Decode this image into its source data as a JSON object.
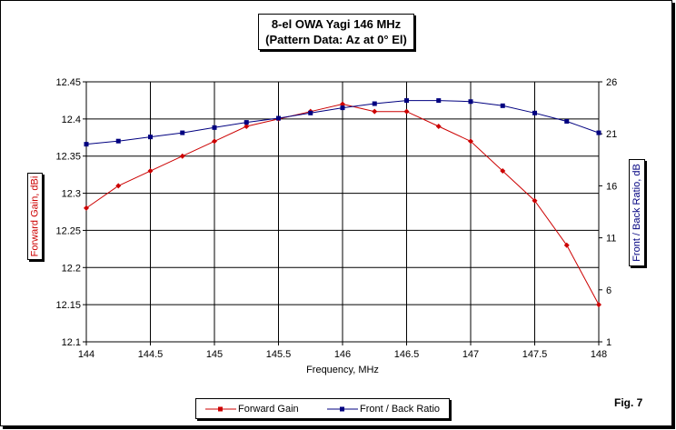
{
  "chart_data": {
    "type": "line",
    "title_line1": "8-el OWA Yagi 146 MHz",
    "title_line2": "(Pattern Data: Az at 0° El)",
    "xlabel": "Frequency, MHz",
    "ylabel_left": "Forward Gain, dBi",
    "ylabel_right": "Front / Back Ratio, dB",
    "xlim": [
      144,
      148
    ],
    "ylim_left": [
      12.1,
      12.45
    ],
    "ylim_right": [
      1,
      26
    ],
    "x_ticks": [
      "144",
      "144.5",
      "145",
      "145.5",
      "146",
      "146.5",
      "147",
      "147.5",
      "148"
    ],
    "y_left_ticks": [
      "12.45",
      "12.4",
      "12.35",
      "12.3",
      "12.25",
      "12.2",
      "12.15",
      "12.1"
    ],
    "y_right_ticks": [
      "26",
      "21",
      "16",
      "11",
      "6",
      "1"
    ],
    "x": [
      144,
      144.25,
      144.5,
      144.75,
      145,
      145.25,
      145.5,
      145.75,
      146,
      146.25,
      146.5,
      146.75,
      147,
      147.25,
      147.5,
      147.75,
      148
    ],
    "series": [
      {
        "name": "Forward Gain",
        "axis": "left",
        "color": "#cc0000",
        "values": [
          12.28,
          12.31,
          12.33,
          12.35,
          12.37,
          12.39,
          12.4,
          12.41,
          12.42,
          12.41,
          12.41,
          12.39,
          12.37,
          12.33,
          12.29,
          12.23,
          12.15
        ]
      },
      {
        "name": "Front / Back Ratio",
        "axis": "right",
        "color": "#000080",
        "values": [
          20.0,
          20.3,
          20.7,
          21.1,
          21.6,
          22.1,
          22.5,
          23.0,
          23.5,
          23.9,
          24.2,
          24.2,
          24.1,
          23.7,
          23.0,
          22.2,
          21.1
        ]
      }
    ],
    "grid": true,
    "legend_position": "bottom"
  },
  "fig_label": "Fig. 7"
}
